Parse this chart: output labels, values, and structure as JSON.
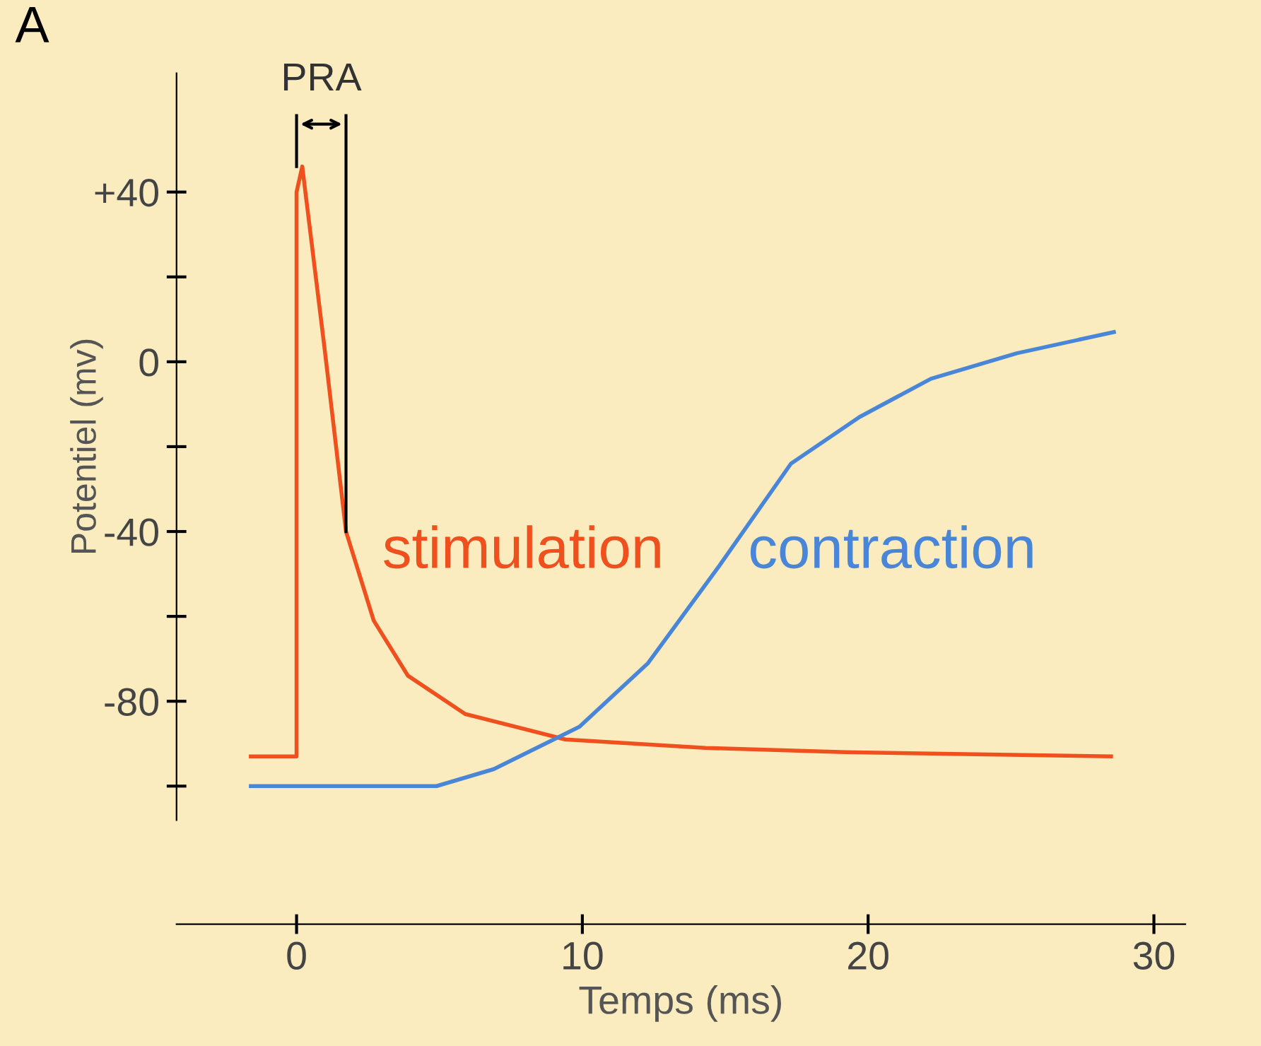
{
  "chart_data": {
    "type": "line",
    "xlabel": "Temps (ms)",
    "ylabel": "Potentiel (mv)",
    "xlim": [
      -4.2,
      31.1
    ],
    "ylim": [
      -108,
      68
    ],
    "xticks": [
      0,
      10,
      20,
      30
    ],
    "yticks": [
      {
        "value": -100,
        "label": null
      },
      {
        "value": -80,
        "label": "-80"
      },
      {
        "value": -60,
        "label": null
      },
      {
        "value": -40,
        "label": "-40"
      },
      {
        "value": -20,
        "label": null
      },
      0,
      {
        "value": 20,
        "label": null
      },
      {
        "value": 40,
        "label": "+40"
      }
    ],
    "grid": false,
    "legend": false,
    "line_style": "solid",
    "marker": "none",
    "series": [
      {
        "name": "stimulation",
        "color": "#f0501e",
        "x": [
          -1.6,
          0,
          0,
          0.2,
          1.0,
          1.73,
          2.7,
          3.9,
          5.9,
          9.4,
          14.3,
          19.2,
          28.5
        ],
        "values": [
          -93,
          -93,
          40,
          46,
          2,
          -40,
          -61,
          -74,
          -83,
          -89,
          -91,
          -92,
          -93
        ]
      },
      {
        "name": "contraction",
        "color": "#4a86d8",
        "x": [
          -1.6,
          4.9,
          6.9,
          9.9,
          12.3,
          14.8,
          17.3,
          19.7,
          22.2,
          25.2,
          28.6
        ],
        "values": [
          -100,
          -100,
          -96,
          -86,
          -71,
          -48,
          -24,
          -13,
          -4,
          2,
          7
        ]
      }
    ],
    "ref_lines": [
      {
        "axis": "x",
        "value": 0,
        "label": "PRA"
      },
      {
        "axis": "x",
        "value": 1.73
      }
    ],
    "annotations": [
      "A"
    ]
  }
}
